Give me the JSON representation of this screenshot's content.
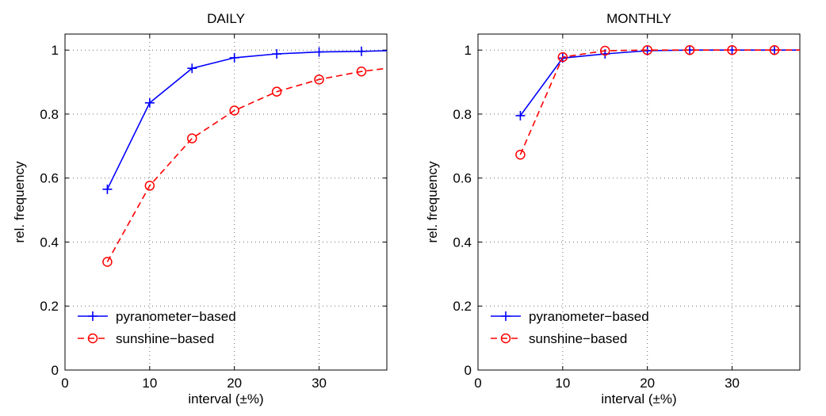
{
  "chart_data": [
    {
      "type": "line",
      "title": "DAILY",
      "xlabel": "interval (±%)",
      "ylabel": "rel. frequency",
      "xlim": [
        0,
        38
      ],
      "ylim": [
        0,
        1.05
      ],
      "xticks": [
        0,
        10,
        20,
        30
      ],
      "yticks": [
        0,
        0.2,
        0.4,
        0.6,
        0.8,
        1
      ],
      "ytick_labels": [
        "0",
        "0.2",
        "0.4",
        "0.6",
        "0.8",
        "1"
      ],
      "grid": true,
      "legend_position": "bottom-left",
      "series": [
        {
          "name": "pyranometer−based",
          "color": "#0000ff",
          "line_style": "solid",
          "marker": "plus",
          "x": [
            5,
            10,
            15,
            20,
            25,
            30,
            35,
            38
          ],
          "y": [
            0.565,
            0.835,
            0.943,
            0.976,
            0.988,
            0.994,
            0.996,
            0.998
          ],
          "marker_x": [
            5,
            10,
            15,
            20,
            25,
            30,
            35
          ]
        },
        {
          "name": "sunshine−based",
          "color": "#ff0000",
          "line_style": "dashed",
          "marker": "circle",
          "x": [
            5,
            10,
            15,
            20,
            25,
            30,
            35,
            38
          ],
          "y": [
            0.338,
            0.576,
            0.724,
            0.811,
            0.87,
            0.908,
            0.933,
            0.943
          ],
          "marker_x": [
            5,
            10,
            15,
            20,
            25,
            30,
            35
          ]
        }
      ]
    },
    {
      "type": "line",
      "title": "MONTHLY",
      "xlabel": "interval (±%)",
      "ylabel": "rel. frequency",
      "xlim": [
        0,
        38
      ],
      "ylim": [
        0,
        1.05
      ],
      "xticks": [
        0,
        10,
        20,
        30
      ],
      "yticks": [
        0,
        0.2,
        0.4,
        0.6,
        0.8,
        1
      ],
      "ytick_labels": [
        "0",
        "0.2",
        "0.4",
        "0.6",
        "0.8",
        "1"
      ],
      "grid": true,
      "legend_position": "bottom-left",
      "series": [
        {
          "name": "pyranometer−based",
          "color": "#0000ff",
          "line_style": "solid",
          "marker": "plus",
          "x": [
            5,
            10,
            15,
            20,
            25,
            30,
            35,
            38
          ],
          "y": [
            0.795,
            0.975,
            0.988,
            0.998,
            1.0,
            1.0,
            1.0,
            1.0
          ],
          "marker_x": [
            5,
            10,
            15,
            20,
            25,
            30,
            35
          ]
        },
        {
          "name": "sunshine−based",
          "color": "#ff0000",
          "line_style": "dashed",
          "marker": "circle",
          "x": [
            5,
            10,
            15,
            20,
            25,
            30,
            35,
            38
          ],
          "y": [
            0.673,
            0.978,
            0.998,
            1.0,
            1.0,
            1.0,
            1.0,
            1.0
          ],
          "marker_x": [
            5,
            10,
            15,
            20,
            25,
            30,
            35
          ]
        }
      ]
    }
  ]
}
